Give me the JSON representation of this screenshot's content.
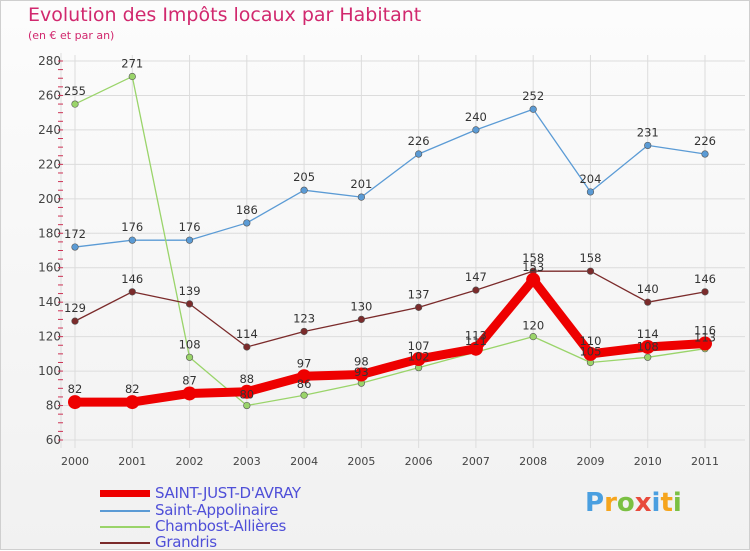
{
  "title": "Evolution des Impôts locaux par Habitant",
  "subtitle": "(en € et par an)",
  "logo": {
    "text": "Proxiti",
    "colors": [
      "#4a9fe0",
      "#f6a51d",
      "#7bc043",
      "#e84a3c",
      "#4a9fe0",
      "#f6a51d",
      "#7bc043"
    ]
  },
  "chart_data": {
    "type": "line",
    "x": [
      "2000",
      "2001",
      "2002",
      "2003",
      "2004",
      "2005",
      "2006",
      "2007",
      "2008",
      "2009",
      "2010",
      "2011"
    ],
    "ylim": [
      60,
      280
    ],
    "yticks": [
      60,
      80,
      100,
      120,
      140,
      160,
      180,
      200,
      220,
      240,
      260,
      280
    ],
    "grid": true,
    "legend_position": "bottom-left",
    "series": [
      {
        "name": "Saint-Appolinaire",
        "color": "#5b9bd5",
        "values": [
          172,
          176,
          176,
          186,
          205,
          201,
          226,
          240,
          252,
          204,
          231,
          226
        ]
      },
      {
        "name": "Chambost-Allières",
        "color": "#9ad46a",
        "values": [
          255,
          271,
          108,
          80,
          86,
          93,
          102,
          111,
          120,
          105,
          108,
          113
        ]
      },
      {
        "name": "Grandris",
        "color": "#7b2b2b",
        "values": [
          129,
          146,
          139,
          114,
          123,
          130,
          137,
          147,
          158,
          158,
          140,
          146
        ]
      },
      {
        "name": "SAINT-JUST-D'AVRAY",
        "color": "#ee0000",
        "values": [
          82,
          82,
          87,
          88,
          97,
          98,
          107,
          113,
          153,
          110,
          114,
          116
        ]
      }
    ],
    "legend_order": [
      "SAINT-JUST-D'AVRAY",
      "Saint-Appolinaire",
      "Chambost-Allières",
      "Grandris"
    ]
  }
}
